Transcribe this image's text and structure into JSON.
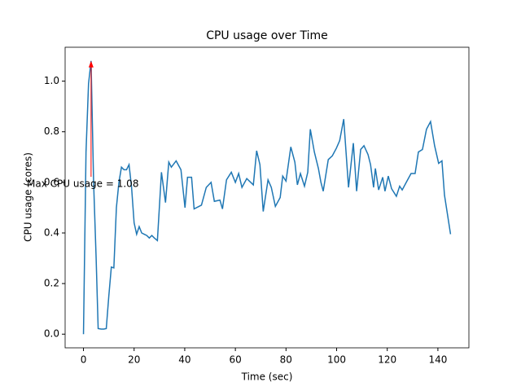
{
  "chart_data": {
    "type": "line",
    "title": "CPU usage over Time",
    "x_label": "Time (sec)",
    "y_label": "CPU usage (cores)",
    "series": [
      {
        "name": "CPU usage",
        "color": "#1f77b4",
        "x": [
          0,
          1,
          2,
          3,
          4,
          5,
          5.8,
          7,
          8,
          9,
          10,
          11,
          12,
          13,
          14,
          15,
          16,
          17,
          18,
          19,
          20,
          21,
          22,
          23,
          24,
          25,
          26,
          27,
          28,
          29.2,
          30.8,
          32.4,
          33.7,
          34.7,
          36.6,
          38.5,
          40.1,
          41.1,
          42.7,
          43.7,
          46.6,
          48.5,
          50.4,
          51.7,
          53.9,
          54.9,
          56.5,
          58.4,
          60,
          61.3,
          62.6,
          64.5,
          67.1,
          68.4,
          69.7,
          71,
          72.9,
          74.2,
          75.8,
          77.7,
          78.7,
          80,
          81.9,
          83.5,
          84.5,
          85.7,
          87.3,
          88.6,
          89.6,
          91.2,
          92.8,
          93.8,
          94.7,
          96.7,
          98.3,
          99.9,
          101.2,
          102.8,
          104.7,
          106.6,
          107.9,
          109.5,
          110.8,
          112.4,
          113.4,
          114.6,
          115.3,
          116.6,
          118.2,
          119.1,
          120.4,
          121.7,
          123.6,
          124.9,
          125.9,
          127.5,
          129.4,
          131,
          132.3,
          133.9,
          135.5,
          137.1,
          138.7,
          140.3,
          141.6,
          142.6,
          145
        ],
        "values": [
          0,
          0.72,
          0.99,
          1.08,
          0.6,
          0.3,
          0.022,
          0.02,
          0.02,
          0.022,
          0.15,
          0.265,
          0.262,
          0.5,
          0.6,
          0.66,
          0.65,
          0.65,
          0.67,
          0.58,
          0.44,
          0.395,
          0.425,
          0.4,
          0.395,
          0.39,
          0.38,
          0.39,
          0.38,
          0.37,
          0.64,
          0.52,
          0.68,
          0.66,
          0.685,
          0.65,
          0.5,
          0.62,
          0.62,
          0.495,
          0.51,
          0.58,
          0.6,
          0.525,
          0.53,
          0.495,
          0.61,
          0.64,
          0.6,
          0.635,
          0.58,
          0.615,
          0.59,
          0.725,
          0.67,
          0.485,
          0.61,
          0.58,
          0.505,
          0.54,
          0.625,
          0.605,
          0.74,
          0.68,
          0.59,
          0.635,
          0.585,
          0.64,
          0.81,
          0.72,
          0.655,
          0.6,
          0.565,
          0.69,
          0.705,
          0.735,
          0.765,
          0.85,
          0.58,
          0.755,
          0.565,
          0.73,
          0.745,
          0.71,
          0.67,
          0.58,
          0.655,
          0.57,
          0.62,
          0.565,
          0.625,
          0.575,
          0.545,
          0.585,
          0.57,
          0.6,
          0.635,
          0.635,
          0.72,
          0.73,
          0.81,
          0.84,
          0.745,
          0.675,
          0.685,
          0.55,
          0.395
        ]
      }
    ],
    "annotation": {
      "text": "Max CPU usage = 1.08",
      "color": "red"
    },
    "xlim": [
      -7.25,
      152.25
    ],
    "xticks": [
      0,
      20,
      40,
      60,
      80,
      100,
      120,
      140
    ],
    "ylim": [
      -0.054,
      1.134
    ],
    "yticks": [
      {
        "value": 0,
        "label": "0.0"
      },
      0.2,
      0.4,
      0.6,
      0.8,
      {
        "value": 1,
        "label": "1.0"
      }
    ]
  }
}
